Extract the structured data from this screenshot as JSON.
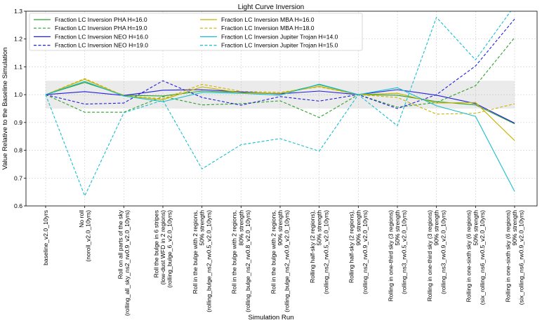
{
  "chart_data": {
    "type": "line",
    "title": "Light Curve Inversion",
    "xlabel": "Simulation Run",
    "ylabel": "Value Relative to the Baseline Simulation",
    "ylim": [
      0.6,
      1.3
    ],
    "yticks": [
      "0.6",
      "0.7",
      "0.8",
      "0.9",
      "1.0",
      "1.1",
      "1.2",
      "1.3"
    ],
    "grid": true,
    "shaded_band": [
      0.95,
      1.05
    ],
    "legend_position": "top-left",
    "categories": [
      [
        "baseline_v2.0_10yrs"
      ],
      [
        "No roll",
        "(noroll_v2.0_10yrs)"
      ],
      [
        "Roll on all parts of the sky",
        "(rolling_all_sky_ns2_rw0.9_v2.0_10yrs)"
      ],
      [
        "Roll the bulge in 6 stripes",
        "(low-dust WFD in 2 regions)",
        "(rolling_bulge_6_v2.0_10yrs)"
      ],
      [
        "Roll in the bulge with 2 regions,",
        "50% strength",
        "(rolling_bulge_ns2_rw0.5_v2.0_10yrs)"
      ],
      [
        "Roll in the bulge with 2 regions,",
        "80% strength",
        "(rolling_bulge_ns2_rw0.8_v2.0_10yrs)"
      ],
      [
        "Roll in the bulge with 2 regions,",
        "90% strength",
        "(rolling_bulge_ns2_rw0.9_v2.0_10yrs)"
      ],
      [
        "Rolling half-sky (2 regions),",
        "50% strength",
        "(rolling_ns2_rw0.5_v2.0_10yrs)"
      ],
      [
        "Rolling half-sky (2 regions),",
        "90% strength",
        "(rolling_ns2_rw0.9_v2.0_10yrs)"
      ],
      [
        "Rolling in one-third sky (3 regions)",
        "50% strength",
        "(rolling_ns3_rw0.5_v2.0_10yrs)"
      ],
      [
        "Rolling in one-third sky (3 regions)",
        "90% strength",
        "(rolling_ns3_rw0.9_v2.0_10yrs)"
      ],
      [
        "Rolling in one-sixth sky (6 regions)",
        "50% strength",
        "(six_rolling_ns6_rw0.5_v2.0_10yrs)"
      ],
      [
        "Rolling in one-sixth sky (6 regions)",
        "90% strength",
        "(six_rolling_ns6_rw0.9_v2.0_10yrs)"
      ]
    ],
    "series": [
      {
        "name": "Fraction LC Inversion PHA H=16.0",
        "color": "#2ca02c",
        "dash": "solid",
        "values": [
          1.0,
          1.044,
          0.998,
          0.995,
          1.013,
          1.008,
          1.003,
          1.036,
          1.0,
          0.998,
          0.975,
          0.963,
          0.895
        ]
      },
      {
        "name": "Fraction LC Inversion PHA H=19.0",
        "color": "#2ca02c",
        "dash": "dashed",
        "values": [
          1.0,
          0.937,
          0.937,
          0.993,
          0.963,
          0.968,
          0.978,
          0.918,
          1.0,
          0.955,
          0.972,
          1.032,
          1.205
        ]
      },
      {
        "name": "Fraction LC Inversion NEO H=16.0",
        "color": "#1f1fe0",
        "dash": "solid",
        "values": [
          1.0,
          1.011,
          0.997,
          1.016,
          1.018,
          1.01,
          1.003,
          1.013,
          1.0,
          1.018,
          0.998,
          0.968,
          0.898
        ]
      },
      {
        "name": "Fraction LC Inversion NEO H=19.0",
        "color": "#1f1fe0",
        "dash": "dashed",
        "values": [
          1.0,
          0.966,
          0.97,
          1.05,
          0.99,
          0.962,
          0.993,
          0.977,
          1.0,
          0.95,
          1.0,
          1.103,
          1.272
        ]
      },
      {
        "name": "Fraction LC Inversion MBA H=16.0",
        "color": "#c8b400",
        "dash": "solid",
        "values": [
          1.0,
          1.055,
          0.995,
          0.982,
          1.028,
          1.007,
          1.005,
          1.03,
          1.0,
          1.005,
          0.97,
          0.972,
          0.835
        ]
      },
      {
        "name": "Fraction LC Inversion MBA H=18.0",
        "color": "#c8b400",
        "dash": "dashed",
        "values": [
          1.0,
          1.058,
          0.996,
          0.985,
          1.037,
          1.012,
          1.008,
          1.028,
          1.0,
          0.99,
          0.93,
          0.933,
          0.967
        ]
      },
      {
        "name": "Fraction LC Inversion Jupiter Trojan H=14.0",
        "color": "#17becf",
        "dash": "solid",
        "values": [
          1.0,
          1.048,
          0.995,
          0.975,
          1.008,
          1.005,
          0.998,
          1.038,
          1.0,
          1.025,
          0.96,
          0.922,
          0.652
        ]
      },
      {
        "name": "Fraction LC Inversion Jupiter Trojan H=15.0",
        "color": "#17becf",
        "dash": "dashed",
        "values": [
          1.0,
          0.636,
          0.935,
          0.98,
          0.733,
          0.82,
          0.842,
          0.797,
          1.0,
          0.888,
          1.278,
          1.125,
          1.32
        ]
      }
    ]
  }
}
